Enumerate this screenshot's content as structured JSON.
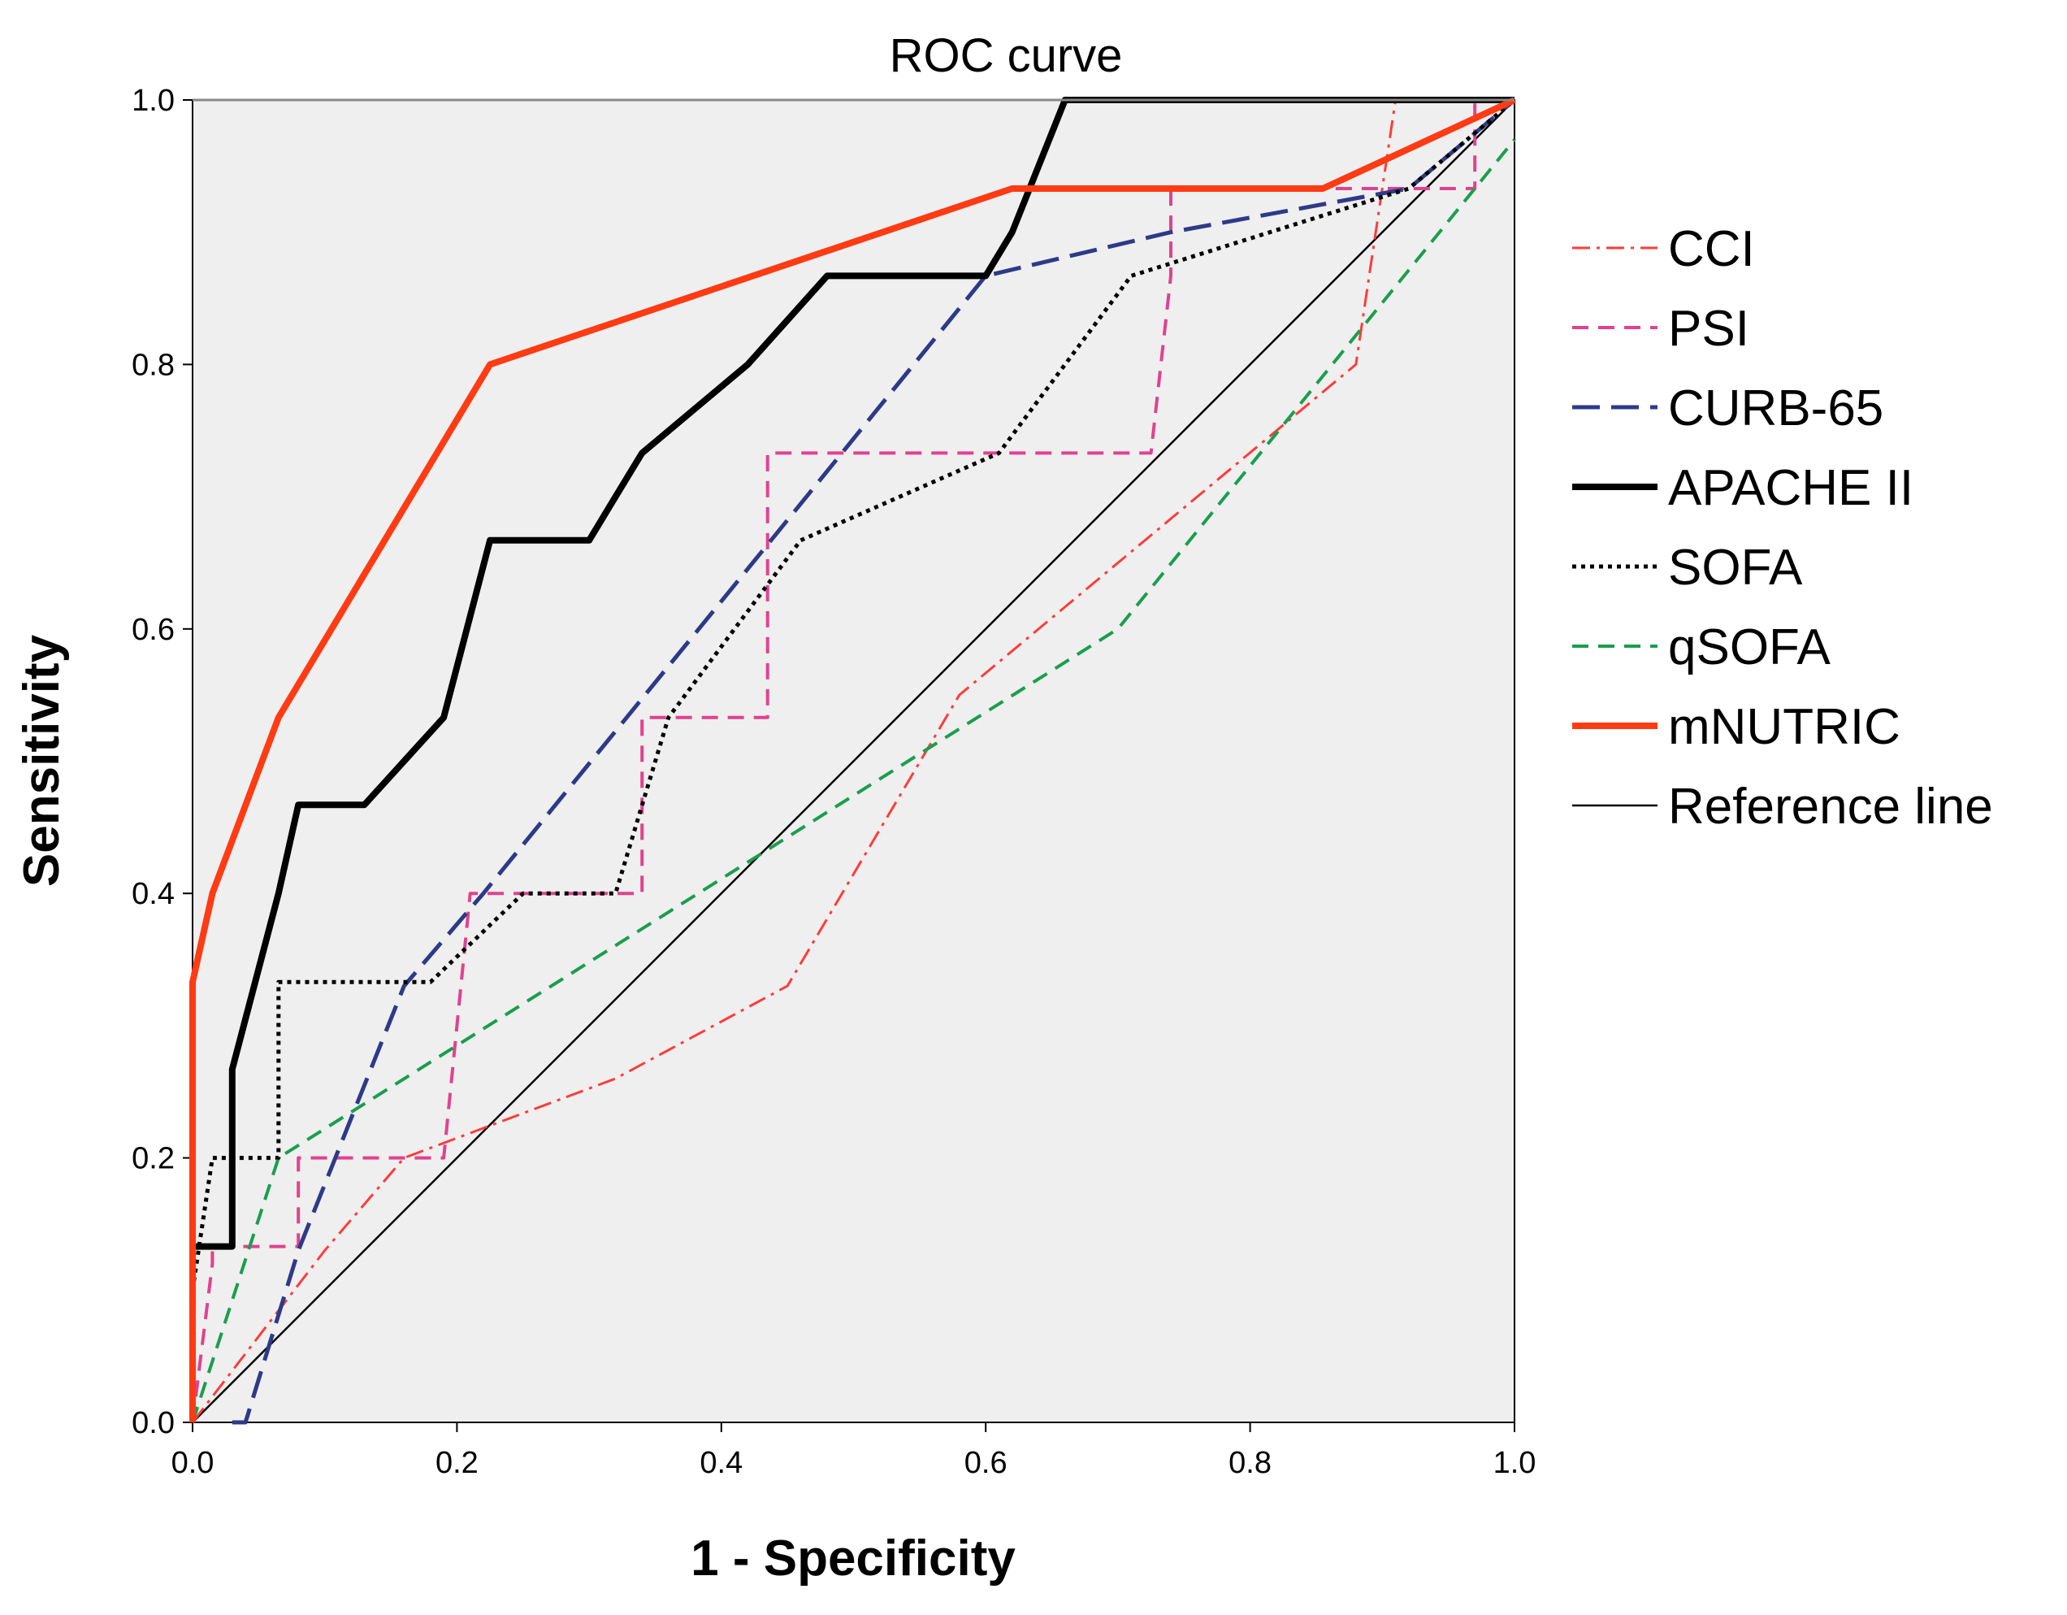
{
  "chart_data": {
    "type": "line",
    "title": "ROC curve",
    "xlabel": "1 - Specificity",
    "ylabel": "Sensitivity",
    "xlim": [
      0,
      1
    ],
    "ylim": [
      0,
      1
    ],
    "xticks": [
      "0.0",
      "0.2",
      "0.4",
      "0.6",
      "0.8",
      "1.0"
    ],
    "yticks": [
      "0.0",
      "0.2",
      "0.4",
      "0.6",
      "0.8",
      "1.0"
    ],
    "legend_position": "right",
    "plot_background": "#efefef",
    "series": [
      {
        "name": "CCI",
        "color": "#ff3b3b",
        "style": "dashdot",
        "x": [
          0,
          0.1,
          0.16,
          0.32,
          0.45,
          0.58,
          0.88,
          0.91,
          1.0
        ],
        "y": [
          0,
          0.13,
          0.2,
          0.26,
          0.33,
          0.55,
          0.8,
          1.0,
          1.0
        ]
      },
      {
        "name": "PSI",
        "color": "#e0428e",
        "style": "dash",
        "x": [
          0,
          0.015,
          0.015,
          0.08,
          0.08,
          0.19,
          0.21,
          0.21,
          0.34,
          0.34,
          0.435,
          0.435,
          0.725,
          0.74,
          0.74,
          0.97,
          0.97,
          1.0
        ],
        "y": [
          0,
          0.12,
          0.133,
          0.133,
          0.2,
          0.2,
          0.4,
          0.4,
          0.4,
          0.533,
          0.533,
          0.733,
          0.733,
          0.867,
          0.933,
          0.933,
          1.0,
          1.0
        ]
      },
      {
        "name": "CURB-65",
        "color": "#2e3a87",
        "style": "longdash",
        "x": [
          0.03,
          0.04,
          0.08,
          0.16,
          0.22,
          0.44,
          0.6,
          0.74,
          0.92,
          1.0
        ],
        "y": [
          0,
          0.0,
          0.13,
          0.33,
          0.4,
          0.67,
          0.867,
          0.9,
          0.933,
          1.0
        ]
      },
      {
        "name": "APACHE II",
        "color": "#000000",
        "style": "solid-thick",
        "x": [
          0,
          0.0,
          0.03,
          0.03,
          0.065,
          0.08,
          0.13,
          0.19,
          0.225,
          0.3,
          0.32,
          0.34,
          0.42,
          0.48,
          0.6,
          0.62,
          0.66,
          0.8,
          1.0
        ],
        "y": [
          0,
          0.133,
          0.133,
          0.267,
          0.4,
          0.467,
          0.467,
          0.533,
          0.667,
          0.667,
          0.7,
          0.733,
          0.8,
          0.867,
          0.867,
          0.9,
          1.0,
          1.0,
          1.0
        ]
      },
      {
        "name": "SOFA",
        "color": "#000000",
        "style": "dot",
        "x": [
          0,
          0.015,
          0.065,
          0.065,
          0.18,
          0.25,
          0.32,
          0.36,
          0.46,
          0.61,
          0.71,
          0.92,
          1.0
        ],
        "y": [
          0.1,
          0.2,
          0.2,
          0.333,
          0.333,
          0.4,
          0.4,
          0.533,
          0.667,
          0.733,
          0.867,
          0.933,
          1.0
        ]
      },
      {
        "name": "qSOFA",
        "color": "#1a9e4e",
        "style": "dash",
        "x": [
          0,
          0.065,
          0.7,
          1.0
        ],
        "y": [
          0,
          0.2,
          0.6,
          0.97
        ]
      },
      {
        "name": "mNUTRIC",
        "color": "#ff3b14",
        "style": "solid-thick",
        "x": [
          0,
          0.0,
          0.015,
          0.065,
          0.225,
          0.62,
          0.855,
          1.0
        ],
        "y": [
          0,
          0.333,
          0.4,
          0.533,
          0.8,
          0.933,
          0.933,
          1.0
        ]
      },
      {
        "name": "Reference line",
        "color": "#000000",
        "style": "solid-thin",
        "x": [
          0,
          1
        ],
        "y": [
          0,
          1
        ]
      }
    ]
  }
}
